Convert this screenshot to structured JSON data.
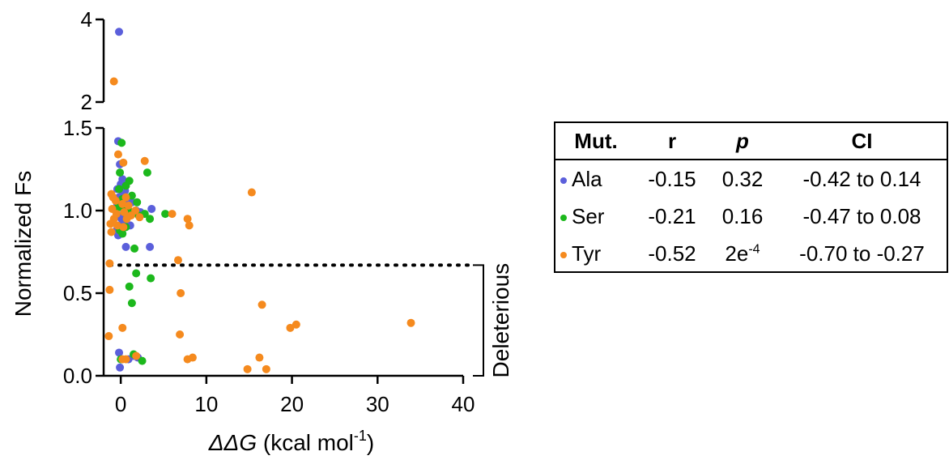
{
  "chart_data": {
    "type": "scatter",
    "xlabel": {
      "var": "ΔΔG",
      "rest": " (kcal mol",
      "sup": "-1",
      "end": ")"
    },
    "ylabel": "Normalized Fs",
    "x_ticks": [
      0,
      10,
      20,
      30,
      40
    ],
    "y_ticks_lower": [
      "0.0",
      "0.5",
      "1.0",
      "1.5"
    ],
    "y_ticks_upper": [
      "2",
      "4"
    ],
    "xlim": [
      -2,
      40
    ],
    "ylim_lower": [
      0,
      1.5
    ],
    "ylim_upper": [
      2,
      4
    ],
    "y_axis_break": true,
    "threshold": {
      "y": 0.67,
      "style": "dotted"
    },
    "annotation": "Deleterious",
    "annotation_range": [
      0,
      0.67
    ],
    "series": [
      {
        "name": "Ala",
        "color": "#5b5fdb",
        "points": [
          [
            -0.2,
            3.7
          ],
          [
            -0.3,
            1.42
          ],
          [
            -0.1,
            1.28
          ],
          [
            0.2,
            1.19
          ],
          [
            0,
            1.16
          ],
          [
            -0.4,
            1.13
          ],
          [
            0.5,
            1.12
          ],
          [
            0.2,
            1.1
          ],
          [
            -0.2,
            1.08
          ],
          [
            0.4,
            1.06
          ],
          [
            -0.4,
            1.04
          ],
          [
            0.1,
            1.02
          ],
          [
            0.6,
            1.01
          ],
          [
            1.3,
            1.05
          ],
          [
            1.8,
            1.0
          ],
          [
            2.3,
            0.99
          ],
          [
            3.6,
            1.01
          ],
          [
            0.3,
            0.98
          ],
          [
            -0.1,
            0.96
          ],
          [
            0.2,
            0.94
          ],
          [
            0.5,
            0.93
          ],
          [
            1.1,
            0.91
          ],
          [
            -0.4,
            0.89
          ],
          [
            0.1,
            0.87
          ],
          [
            -0.3,
            0.85
          ],
          [
            0.6,
            0.78
          ],
          [
            3.4,
            0.78
          ],
          [
            -0.2,
            0.14
          ],
          [
            0.9,
            0.1
          ],
          [
            1.5,
            0.12
          ],
          [
            2.0,
            0.11
          ],
          [
            -0.1,
            0.05
          ]
        ]
      },
      {
        "name": "Ser",
        "color": "#1cb81c",
        "points": [
          [
            0.1,
            1.41
          ],
          [
            3.1,
            1.23
          ],
          [
            -0.1,
            1.23
          ],
          [
            1.0,
            1.18
          ],
          [
            0.6,
            1.15
          ],
          [
            -0.2,
            1.13
          ],
          [
            1.3,
            1.09
          ],
          [
            0.2,
            1.07
          ],
          [
            1.9,
            1.05
          ],
          [
            -0.3,
            1.02
          ],
          [
            0.4,
            1.0
          ],
          [
            1.2,
            0.99
          ],
          [
            2.8,
            0.98
          ],
          [
            5.2,
            0.98
          ],
          [
            3.4,
            0.95
          ],
          [
            2.1,
            0.97
          ],
          [
            0.6,
            0.9
          ],
          [
            -0.1,
            0.88
          ],
          [
            0.2,
            0.86
          ],
          [
            1.6,
            0.77
          ],
          [
            1.8,
            0.62
          ],
          [
            3.5,
            0.59
          ],
          [
            1.0,
            0.54
          ],
          [
            1.3,
            0.44
          ],
          [
            1.5,
            0.13
          ],
          [
            2.5,
            0.09
          ],
          [
            0,
            0.1
          ]
        ]
      },
      {
        "name": "Tyr",
        "color": "#f58a1e",
        "points": [
          [
            -0.8,
            2.5
          ],
          [
            -0.3,
            1.34
          ],
          [
            2.8,
            1.3
          ],
          [
            0.3,
            1.29
          ],
          [
            15.3,
            1.11
          ],
          [
            -1.1,
            1.1
          ],
          [
            -0.9,
            1.08
          ],
          [
            0.6,
            1.08
          ],
          [
            -0.6,
            1.06
          ],
          [
            0.2,
            1.04
          ],
          [
            0.9,
            1.03
          ],
          [
            -1.0,
            1.01
          ],
          [
            1.7,
            1.0
          ],
          [
            0.4,
            0.99
          ],
          [
            -0.5,
            0.98
          ],
          [
            6.0,
            0.98
          ],
          [
            1.2,
            0.97
          ],
          [
            2.2,
            0.96
          ],
          [
            -0.8,
            0.95
          ],
          [
            0.7,
            0.95
          ],
          [
            7.8,
            0.95
          ],
          [
            -1.2,
            0.92
          ],
          [
            -0.4,
            0.91
          ],
          [
            8.0,
            0.91
          ],
          [
            0.3,
            0.9
          ],
          [
            -1.1,
            0.87
          ],
          [
            6.7,
            0.7
          ],
          [
            -1.3,
            0.68
          ],
          [
            -1.3,
            0.52
          ],
          [
            7.0,
            0.5
          ],
          [
            16.5,
            0.43
          ],
          [
            33.9,
            0.32
          ],
          [
            20.5,
            0.31
          ],
          [
            19.8,
            0.29
          ],
          [
            0.2,
            0.29
          ],
          [
            -1.4,
            0.24
          ],
          [
            6.9,
            0.25
          ],
          [
            1.8,
            0.12
          ],
          [
            0.6,
            0.1
          ],
          [
            0.2,
            0.1
          ],
          [
            8.4,
            0.11
          ],
          [
            7.8,
            0.1
          ],
          [
            16.2,
            0.11
          ],
          [
            14.8,
            0.04
          ],
          [
            17.0,
            0.04
          ]
        ]
      }
    ]
  },
  "stats_table": {
    "headers": {
      "mut": "Mut.",
      "r": "r",
      "p": "p",
      "ci": "CI"
    },
    "rows": [
      {
        "mut": "Ala",
        "color": "#5b5fdb",
        "r": "-0.15",
        "p": "0.32",
        "p_exp": "",
        "ci": "-0.42 to 0.14"
      },
      {
        "mut": "Ser",
        "color": "#1cb81c",
        "r": "-0.21",
        "p": "0.16",
        "p_exp": "",
        "ci": "-0.47 to 0.08"
      },
      {
        "mut": "Tyr",
        "color": "#f58a1e",
        "r": "-0.52",
        "p": "2e",
        "p_exp": "-4",
        "ci": "-0.70 to -0.27"
      }
    ]
  }
}
